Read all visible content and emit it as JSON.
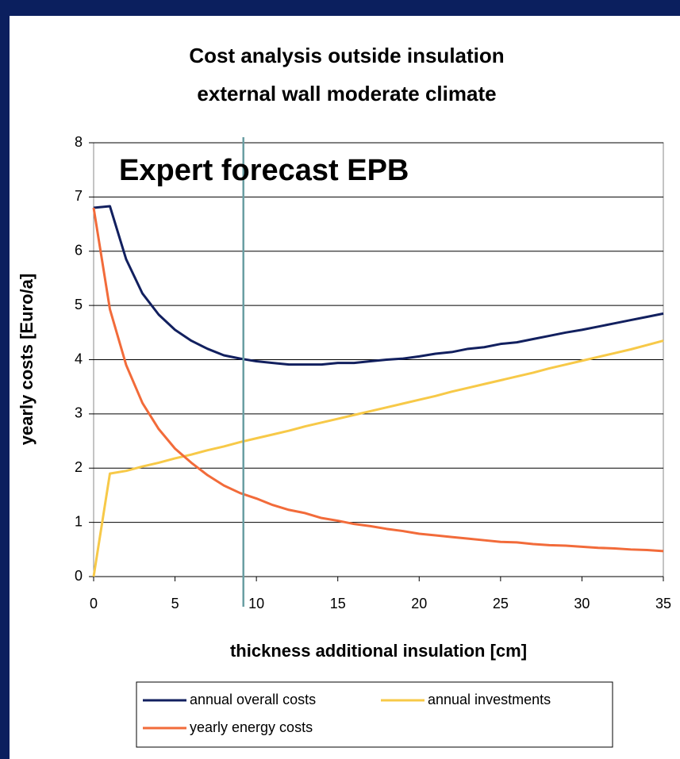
{
  "chart_data": {
    "type": "line",
    "title": [
      "Cost analysis outside insulation",
      "external wall moderate climate"
    ],
    "xlabel": "thickness additional insulation [cm]",
    "ylabel": "yearly costs [Euro/a]",
    "annotation": {
      "text": "Expert forecast EPB",
      "x": 9.2,
      "color": "#6a9ea3"
    },
    "x": [
      0,
      1,
      2,
      3,
      4,
      5,
      6,
      7,
      8,
      9,
      10,
      11,
      12,
      13,
      14,
      15,
      16,
      17,
      18,
      19,
      20,
      21,
      22,
      23,
      24,
      25,
      26,
      27,
      28,
      29,
      30,
      31,
      32,
      33,
      34,
      35
    ],
    "series": [
      {
        "name": "annual overall costs",
        "color": "#12205f",
        "values": [
          6.8,
          6.83,
          5.85,
          5.22,
          4.83,
          4.55,
          4.35,
          4.2,
          4.08,
          4.02,
          3.97,
          3.94,
          3.91,
          3.91,
          3.91,
          3.94,
          3.94,
          3.97,
          4.0,
          4.02,
          4.06,
          4.11,
          4.14,
          4.2,
          4.23,
          4.29,
          4.32,
          4.38,
          4.44,
          4.5,
          4.55,
          4.61,
          4.67,
          4.73,
          4.79,
          4.85
        ]
      },
      {
        "name": "annual investments",
        "color": "#f7c948",
        "values": [
          0,
          1.9,
          1.95,
          2.03,
          2.1,
          2.18,
          2.25,
          2.33,
          2.4,
          2.48,
          2.55,
          2.62,
          2.69,
          2.77,
          2.84,
          2.91,
          2.98,
          3.05,
          3.12,
          3.19,
          3.26,
          3.33,
          3.41,
          3.48,
          3.55,
          3.62,
          3.69,
          3.76,
          3.84,
          3.91,
          3.98,
          4.05,
          4.12,
          4.19,
          4.27,
          4.35
        ]
      },
      {
        "name": "yearly energy costs",
        "color": "#f26b3a",
        "values": [
          6.8,
          4.93,
          3.9,
          3.2,
          2.72,
          2.36,
          2.1,
          1.87,
          1.68,
          1.54,
          1.44,
          1.32,
          1.23,
          1.17,
          1.08,
          1.03,
          0.97,
          0.93,
          0.88,
          0.84,
          0.79,
          0.76,
          0.73,
          0.7,
          0.67,
          0.64,
          0.63,
          0.6,
          0.58,
          0.57,
          0.55,
          0.53,
          0.52,
          0.5,
          0.49,
          0.47
        ]
      }
    ],
    "xlim": [
      0,
      35
    ],
    "xticks": [
      0,
      5,
      10,
      15,
      20,
      25,
      30,
      35
    ],
    "ylim": [
      0,
      8
    ],
    "yticks": [
      0,
      1,
      2,
      3,
      4,
      5,
      6,
      7,
      8
    ],
    "grid": true,
    "legend": "bottom"
  }
}
